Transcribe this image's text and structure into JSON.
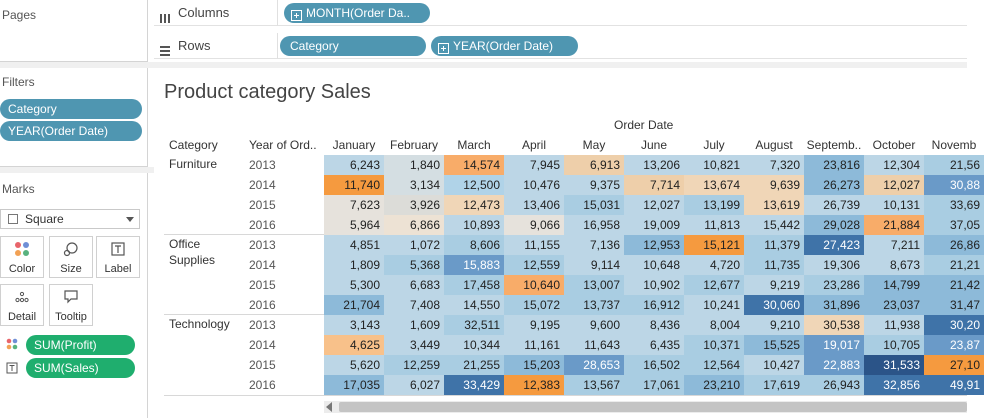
{
  "panels": {
    "pages": "Pages",
    "filters": "Filters",
    "marks": "Marks",
    "filter_pills": [
      "Category",
      "YEAR(Order Date)"
    ],
    "mark_type": "Square",
    "mark_buttons": [
      {
        "label": "Color",
        "icon": "color-icon"
      },
      {
        "label": "Size",
        "icon": "size-icon"
      },
      {
        "label": "Label",
        "icon": "label-icon"
      },
      {
        "label": "Detail",
        "icon": "detail-icon"
      },
      {
        "label": "Tooltip",
        "icon": "tooltip-icon"
      }
    ],
    "mark_pills": [
      {
        "label": "SUM(Profit)",
        "icon": "color-icon"
      },
      {
        "label": "SUM(Sales)",
        "icon": "label-icon"
      }
    ]
  },
  "shelves": {
    "columns_label": "Columns",
    "rows_label": "Rows",
    "column_pills": [
      "MONTH(Order Da.."
    ],
    "row_pills": [
      "Category",
      "YEAR(Order Date)"
    ]
  },
  "view": {
    "title": "Product category Sales",
    "column_group": "Order Date",
    "category_header": "Category",
    "year_header": "Year of Ord..",
    "months": [
      "January",
      "February",
      "March",
      "April",
      "May",
      "June",
      "July",
      "August",
      "Septemb..",
      "October",
      "Novemb"
    ]
  },
  "chart_data": {
    "type": "heatmap",
    "title": "Product category Sales",
    "categories": [
      "Furniture",
      "Office Supplies",
      "Technology"
    ],
    "years": [
      "2013",
      "2014",
      "2015",
      "2016"
    ],
    "color_scale": {
      "low": "#f58d2f",
      "mid": "#e8d9c4",
      "high": "#2f5d8c",
      "note": "color encodes SUM(Profit)"
    },
    "rows": [
      {
        "category": "Furniture",
        "year": "2013",
        "values": [
          "6,243",
          "1,840",
          "14,574",
          "7,945",
          "6,913",
          "13,206",
          "10,821",
          "7,320",
          "23,816",
          "12,304",
          "21,56"
        ],
        "colors": [
          "#bcd6e6",
          "#d4dee2",
          "#f8ac69",
          "#bcd6e6",
          "#eecfaa",
          "#bcd6e6",
          "#bcd6e6",
          "#bcd6e6",
          "#8dbad9",
          "#bcd6e6",
          "#a9cde2"
        ]
      },
      {
        "category": "Furniture",
        "year": "2014",
        "values": [
          "11,740",
          "3,134",
          "12,500",
          "10,476",
          "9,375",
          "7,714",
          "13,674",
          "9,639",
          "26,273",
          "12,027",
          "30,88"
        ],
        "colors": [
          "#f59a3f",
          "#d4dee2",
          "#b0d3e8",
          "#bcd6e6",
          "#bcd6e6",
          "#eecfaa",
          "#f0d6b7",
          "#f0d6b7",
          "#8dbad9",
          "#eecfaa",
          "#6a9ac8"
        ]
      },
      {
        "category": "Furniture",
        "year": "2015",
        "values": [
          "7,623",
          "3,926",
          "12,473",
          "13,406",
          "15,031",
          "12,027",
          "13,199",
          "13,619",
          "26,739",
          "10,131",
          "33,69"
        ],
        "colors": [
          "#e6e2dc",
          "#dcdcd8",
          "#f0d6b7",
          "#bcd6e6",
          "#a9cde2",
          "#bcd6e6",
          "#a9cde2",
          "#f0d6b7",
          "#bcd6e6",
          "#bcd6e6",
          "#a9cde2"
        ]
      },
      {
        "category": "Furniture",
        "year": "2016",
        "values": [
          "5,964",
          "6,866",
          "10,893",
          "9,066",
          "16,958",
          "19,009",
          "11,813",
          "15,442",
          "29,028",
          "21,884",
          "37,05"
        ],
        "colors": [
          "#e6e2dc",
          "#ede2d4",
          "#bcd6e6",
          "#e6e2dc",
          "#bcd6e6",
          "#bcd6e6",
          "#bcd6e6",
          "#bcd6e6",
          "#8dbad9",
          "#f8ac69",
          "#a9cde2"
        ]
      },
      {
        "category": "Office Supplies",
        "year": "2013",
        "values": [
          "4,851",
          "1,072",
          "8,606",
          "11,155",
          "7,136",
          "12,953",
          "15,121",
          "11,379",
          "27,423",
          "7,211",
          "26,86"
        ],
        "colors": [
          "#bcd6e6",
          "#bcd6e6",
          "#a9cde2",
          "#bcd6e6",
          "#bcd6e6",
          "#8dbad9",
          "#f59a3f",
          "#a9cde2",
          "#3f73a8",
          "#bcd6e6",
          "#8dbad9"
        ]
      },
      {
        "category": "Office Supplies",
        "year": "2014",
        "values": [
          "1,809",
          "5,368",
          "15,883",
          "12,559",
          "9,114",
          "10,648",
          "4,720",
          "11,735",
          "19,306",
          "8,673",
          "21,21"
        ],
        "colors": [
          "#bcd6e6",
          "#a9cde2",
          "#6a9ac8",
          "#a9cde2",
          "#bcd6e6",
          "#bcd6e6",
          "#bcd6e6",
          "#a9cde2",
          "#bcd6e6",
          "#bcd6e6",
          "#a9cde2"
        ]
      },
      {
        "category": "Office Supplies",
        "year": "2015",
        "values": [
          "5,300",
          "6,683",
          "17,458",
          "10,640",
          "13,007",
          "10,902",
          "12,677",
          "9,219",
          "23,286",
          "14,799",
          "21,42"
        ],
        "colors": [
          "#bcd6e6",
          "#bcd6e6",
          "#a9cde2",
          "#f8ac69",
          "#a9cde2",
          "#bcd6e6",
          "#a9cde2",
          "#bcd6e6",
          "#a9cde2",
          "#8dbad9",
          "#8dbad9"
        ]
      },
      {
        "category": "Office Supplies",
        "year": "2016",
        "values": [
          "21,704",
          "7,408",
          "14,550",
          "15,072",
          "13,737",
          "16,912",
          "10,241",
          "30,060",
          "31,896",
          "23,037",
          "31,47"
        ],
        "colors": [
          "#8dbad9",
          "#bcd6e6",
          "#bcd6e6",
          "#a9cde2",
          "#a9cde2",
          "#a9cde2",
          "#bcd6e6",
          "#3f73a8",
          "#8dbad9",
          "#8dbad9",
          "#8dbad9"
        ]
      },
      {
        "category": "Technology",
        "year": "2013",
        "values": [
          "3,143",
          "1,609",
          "32,511",
          "9,195",
          "9,600",
          "8,436",
          "8,004",
          "9,210",
          "30,538",
          "11,938",
          "30,20"
        ],
        "colors": [
          "#bcd6e6",
          "#bcd6e6",
          "#a9cde2",
          "#bcd6e6",
          "#bcd6e6",
          "#bcd6e6",
          "#bcd6e6",
          "#bcd6e6",
          "#f0d6b7",
          "#bcd6e6",
          "#3f73a8"
        ]
      },
      {
        "category": "Technology",
        "year": "2014",
        "values": [
          "4,625",
          "3,449",
          "10,344",
          "11,161",
          "11,643",
          "6,435",
          "10,371",
          "15,525",
          "19,017",
          "10,705",
          "23,87"
        ],
        "colors": [
          "#f8c18a",
          "#bcd6e6",
          "#bcd6e6",
          "#bcd6e6",
          "#bcd6e6",
          "#bcd6e6",
          "#a9cde2",
          "#8dbad9",
          "#6a9ac8",
          "#a9cde2",
          "#6a9ac8"
        ]
      },
      {
        "category": "Technology",
        "year": "2015",
        "values": [
          "5,620",
          "12,259",
          "21,255",
          "15,203",
          "28,653",
          "16,502",
          "12,564",
          "10,427",
          "22,883",
          "31,533",
          "27,10"
        ],
        "colors": [
          "#bcd6e6",
          "#a9cde2",
          "#a9cde2",
          "#8dbad9",
          "#6a9ac8",
          "#a9cde2",
          "#a9cde2",
          "#bcd6e6",
          "#6a9ac8",
          "#2b5488",
          "#f59a3f"
        ]
      },
      {
        "category": "Technology",
        "year": "2016",
        "values": [
          "17,035",
          "6,027",
          "33,429",
          "12,383",
          "13,567",
          "17,061",
          "23,210",
          "17,619",
          "26,943",
          "32,856",
          "49,91"
        ],
        "colors": [
          "#8dbad9",
          "#bcd6e6",
          "#3f73a8",
          "#f59a3f",
          "#a9cde2",
          "#a9cde2",
          "#8dbad9",
          "#a9cde2",
          "#a9cde2",
          "#3f73a8",
          "#3f73a8"
        ]
      }
    ]
  }
}
